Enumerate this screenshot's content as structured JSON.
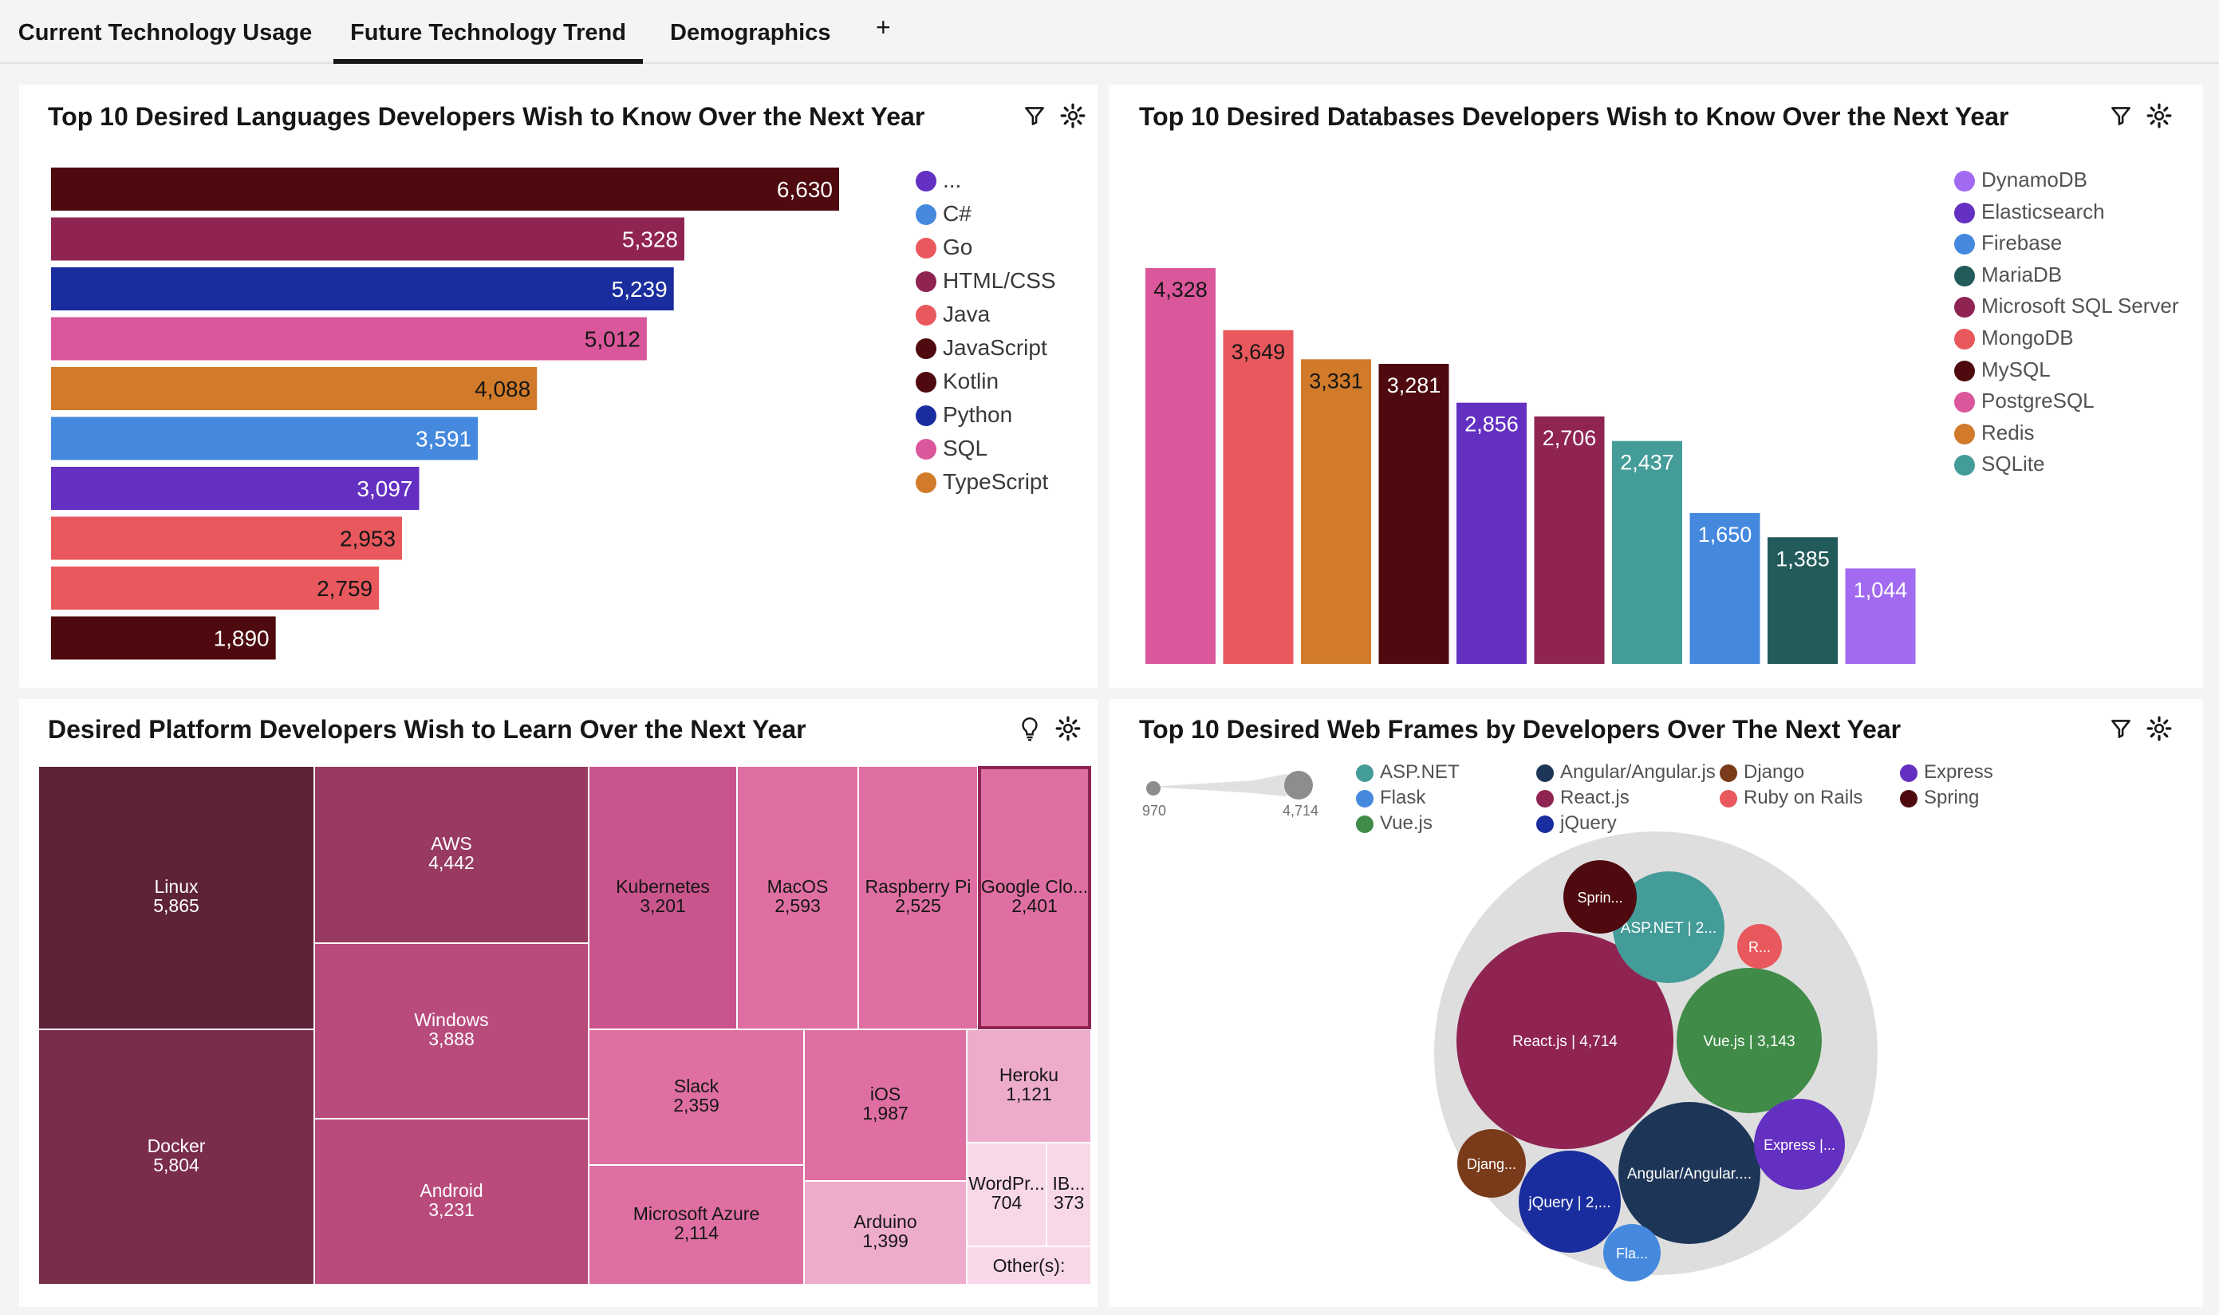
{
  "tabs": [
    {
      "label": "Current Technology Usage",
      "active": false
    },
    {
      "label": "Future Technology Trend",
      "active": true
    },
    {
      "label": "Demographics",
      "active": false
    }
  ],
  "add_tab_label": "+",
  "colors": {
    "maroon_dark": "#4e0a0e",
    "wine": "#8f2452",
    "navy_blue": "#1a2d9e",
    "pink": "#d9579a",
    "orange": "#d17b2a",
    "blue": "#4589de",
    "purple": "#6330c2",
    "coral": "#e8585c",
    "teal": "#449c99",
    "dark_teal": "#235a5a",
    "lavender": "#a16af0"
  },
  "languages": {
    "title": "Top 10 Desired Languages Developers Wish to Know Over the Next Year",
    "icons": [
      "filter-icon",
      "settings-icon"
    ],
    "chart_data": {
      "type": "bar",
      "orientation": "horizontal",
      "values": [
        6630,
        5328,
        5239,
        5012,
        4088,
        3591,
        3097,
        2953,
        2759,
        1890
      ],
      "value_labels": [
        "6,630",
        "5,328",
        "5,239",
        "5,012",
        "4,088",
        "3,591",
        "3,097",
        "2,953",
        "2,759",
        "1,890"
      ],
      "bar_colors": [
        "#4e0a0e",
        "#8f2452",
        "#1a2d9e",
        "#d9579a",
        "#d17b2a",
        "#4589de",
        "#6330c2",
        "#e8585c",
        "#e8585c",
        "#4e0a0e"
      ],
      "legend": [
        {
          "label": "...",
          "color": "#6330c2"
        },
        {
          "label": "C#",
          "color": "#4589de"
        },
        {
          "label": "Go",
          "color": "#e8585c"
        },
        {
          "label": "HTML/CSS",
          "color": "#8f2452"
        },
        {
          "label": "Java",
          "color": "#e8585c"
        },
        {
          "label": "JavaScript",
          "color": "#4e0a0e"
        },
        {
          "label": "Kotlin",
          "color": "#4e0a0e"
        },
        {
          "label": "Python",
          "color": "#1a2d9e"
        },
        {
          "label": "SQL",
          "color": "#d9579a"
        },
        {
          "label": "TypeScript",
          "color": "#d17b2a"
        }
      ]
    }
  },
  "databases": {
    "title": "Top 10 Desired Databases Developers Wish to Know Over the Next Year",
    "icons": [
      "filter-icon",
      "settings-icon"
    ],
    "chart_data": {
      "type": "bar",
      "orientation": "vertical",
      "values": [
        4328,
        3649,
        3331,
        3281,
        2856,
        2706,
        2437,
        1650,
        1385,
        1044
      ],
      "value_labels": [
        "4,328",
        "3,649",
        "3,331",
        "3,281",
        "2,856",
        "2,706",
        "2,437",
        "1,650",
        "1,385",
        "1,044"
      ],
      "bar_colors": [
        "#d9579a",
        "#e8585c",
        "#d17b2a",
        "#4e0a0e",
        "#6330c2",
        "#8f2452",
        "#449c99",
        "#4589de",
        "#235a5a",
        "#a16af0"
      ],
      "legend": [
        {
          "label": "DynamoDB",
          "color": "#a16af0"
        },
        {
          "label": "Elasticsearch",
          "color": "#6330c2"
        },
        {
          "label": "Firebase",
          "color": "#4589de"
        },
        {
          "label": "MariaDB",
          "color": "#235a5a"
        },
        {
          "label": "Microsoft SQL Server",
          "color": "#8f2452"
        },
        {
          "label": "MongoDB",
          "color": "#e8585c"
        },
        {
          "label": "MySQL",
          "color": "#4e0a0e"
        },
        {
          "label": "PostgreSQL",
          "color": "#d9579a"
        },
        {
          "label": "Redis",
          "color": "#d17b2a"
        },
        {
          "label": "SQLite",
          "color": "#449c99"
        }
      ]
    }
  },
  "platforms": {
    "title": "Desired Platform Developers Wish to Learn Over the Next Year",
    "icons": [
      "lightbulb-icon",
      "settings-icon"
    ],
    "chart_data": {
      "type": "treemap",
      "items": [
        {
          "label": "Linux",
          "value": "5,865",
          "color": "#5e2339"
        },
        {
          "label": "Docker",
          "value": "5,804",
          "color": "#7a2c4b"
        },
        {
          "label": "AWS",
          "value": "4,442",
          "color": "#983a62"
        },
        {
          "label": "Windows",
          "value": "3,888",
          "color": "#b84a7c"
        },
        {
          "label": "Android",
          "value": "3,231",
          "color": "#b84a7c"
        },
        {
          "label": "Kubernetes",
          "value": "3,201",
          "color": "#c9558c"
        },
        {
          "label": "MacOS",
          "value": "2,593",
          "color": "#df6fa2"
        },
        {
          "label": "Raspberry Pi",
          "value": "2,525",
          "color": "#df6fa2"
        },
        {
          "label": "Google Clo...",
          "value": "2,401",
          "color": "#df6fa2"
        },
        {
          "label": "Slack",
          "value": "2,359",
          "color": "#df6fa2"
        },
        {
          "label": "iOS",
          "value": "1,987",
          "color": "#df6fa2"
        },
        {
          "label": "Heroku",
          "value": "1,121",
          "color": "#eeaccd"
        },
        {
          "label": "Microsoft Azure",
          "value": "2,114",
          "color": "#df6fa2"
        },
        {
          "label": "Arduino",
          "value": "1,399",
          "color": "#eeaccd"
        },
        {
          "label": "WordPr...",
          "value": "704",
          "color": "#f8d8e8"
        },
        {
          "label": "IB...",
          "value": "373",
          "color": "#f8d8e8"
        },
        {
          "label": "Other(s):",
          "value": "",
          "color": "#f8d8e8"
        }
      ]
    }
  },
  "webframes": {
    "title": "Top 10 Desired Web Frames by Developers Over The Next Year",
    "icons": [
      "filter-icon",
      "settings-icon"
    ],
    "slider": {
      "min_label": "970",
      "max_label": "4,714"
    },
    "chart_data": {
      "type": "bubble",
      "bubbles": [
        {
          "label": "React.js | 4,714",
          "value": 4714,
          "color": "#8f2452"
        },
        {
          "label": "Vue.js | 3,143",
          "value": 3143,
          "color": "#3f8b47"
        },
        {
          "label": "Angular/Angular....",
          "value": 2900,
          "color": "#1d3557"
        },
        {
          "label": "ASP.NET | 2...",
          "value": 2000,
          "color": "#449c99"
        },
        {
          "label": "jQuery | 2,...",
          "value": 2000,
          "color": "#1a2d9e"
        },
        {
          "label": "Express |...",
          "value": 1500,
          "color": "#6330c2"
        },
        {
          "label": "Djang...",
          "value": 1050,
          "color": "#7a3b1a"
        },
        {
          "label": "Sprin...",
          "value": 1050,
          "color": "#4e0a0e"
        },
        {
          "label": "Fla...",
          "value": 970,
          "color": "#4589de"
        },
        {
          "label": "R...",
          "value": 700,
          "color": "#e8585c"
        }
      ],
      "legend": [
        {
          "label": "ASP.NET",
          "color": "#449c99"
        },
        {
          "label": "Angular/Angular.js",
          "color": "#1d3557"
        },
        {
          "label": "Django",
          "color": "#7a3b1a"
        },
        {
          "label": "Express",
          "color": "#6330c2"
        },
        {
          "label": "Flask",
          "color": "#4589de"
        },
        {
          "label": "React.js",
          "color": "#8f2452"
        },
        {
          "label": "Ruby on Rails",
          "color": "#e8585c"
        },
        {
          "label": "Spring",
          "color": "#4e0a0e"
        },
        {
          "label": "Vue.js",
          "color": "#3f8b47"
        },
        {
          "label": "jQuery",
          "color": "#1a2d9e"
        }
      ]
    }
  }
}
